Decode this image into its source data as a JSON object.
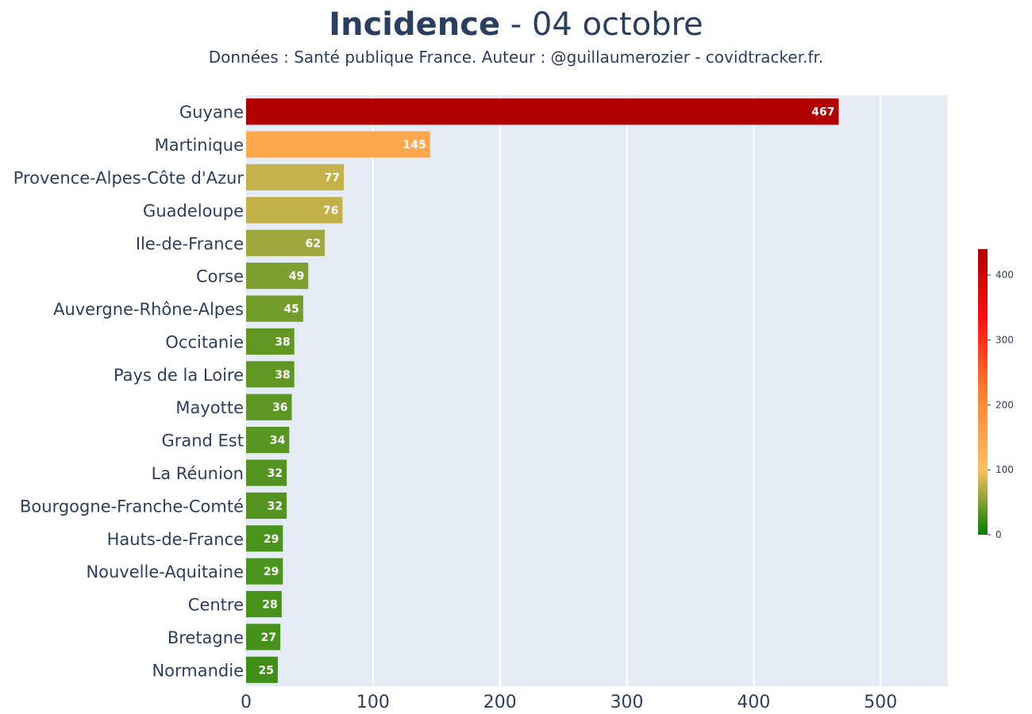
{
  "header": {
    "title_bold": "Incidence",
    "title_rest": " - 04 octobre",
    "subtitle": "Données : Santé publique France. Auteur : @guillaumerozier - covidtracker.fr."
  },
  "chart_data": {
    "type": "bar",
    "orientation": "horizontal",
    "title": "Incidence - 04 octobre",
    "categories": [
      "Guyane",
      "Martinique",
      "Provence-Alpes-Côte d'Azur",
      "Guadeloupe",
      "Ile-de-France",
      "Corse",
      "Auvergne-Rhône-Alpes",
      "Occitanie",
      "Pays de la Loire",
      "Mayotte",
      "Grand Est",
      "La Réunion",
      "Bourgogne-Franche-Comté",
      "Hauts-de-France",
      "Nouvelle-Aquitaine",
      "Centre",
      "Bretagne",
      "Normandie"
    ],
    "values": [
      467,
      145,
      77,
      76,
      62,
      49,
      45,
      38,
      38,
      36,
      34,
      32,
      32,
      29,
      29,
      28,
      27,
      25
    ],
    "xlim": [
      0,
      553
    ],
    "xticks": [
      0,
      100,
      200,
      300,
      400,
      500
    ],
    "grid": true,
    "colorbar": {
      "min": 0,
      "max": 440,
      "ticks": [
        0,
        100,
        200,
        300,
        400
      ],
      "stops": [
        {
          "value": 0,
          "color": "#008000"
        },
        {
          "value": 100,
          "color": "#ffc060"
        },
        {
          "value": 220,
          "color": "#ff8030"
        },
        {
          "value": 330,
          "color": "#ff1010"
        },
        {
          "value": 440,
          "color": "#b00000"
        }
      ],
      "position": "right"
    },
    "colors": {
      "plot_bg": "#e5ecf6",
      "grid": "#ffffff",
      "text": "#2a3f5f",
      "label": "#ffffff"
    }
  }
}
